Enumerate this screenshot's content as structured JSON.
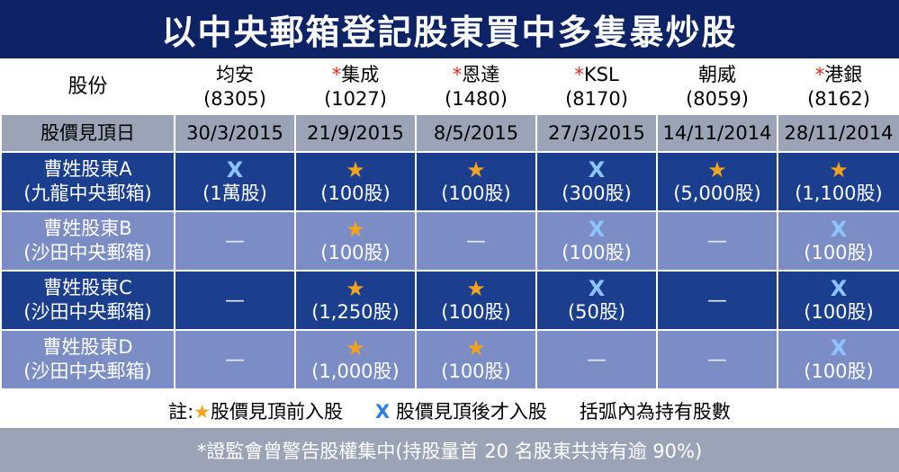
{
  "title": "以中央郵箱登記股東買中多隻暴炒股",
  "header_label": "股份",
  "stocks": [
    {
      "flag": "",
      "name": "均安",
      "code": "(8305)"
    },
    {
      "flag": "*",
      "name": "集成",
      "code": "(1027)"
    },
    {
      "flag": "*",
      "name": "恩達",
      "code": "(1480)"
    },
    {
      "flag": "*",
      "name": "KSL",
      "code": "(8170)"
    },
    {
      "flag": "",
      "name": "朝威",
      "code": "(8059)"
    },
    {
      "flag": "*",
      "name": "港銀",
      "code": "(8162)"
    }
  ],
  "date_label": "股價見頂日",
  "peak_dates": [
    "30/3/2015",
    "21/9/2015",
    "8/5/2015",
    "27/3/2015",
    "14/11/2014",
    "28/11/2014"
  ],
  "holders": [
    {
      "name": "曹姓股東A",
      "box": "(九龍中央郵箱)",
      "cells": [
        {
          "mark": "X",
          "amount": "(1萬股)"
        },
        {
          "mark": "★",
          "amount": "(100股)"
        },
        {
          "mark": "★",
          "amount": "(100股)"
        },
        {
          "mark": "X",
          "amount": "(300股)"
        },
        {
          "mark": "★",
          "amount": "(5,000股)"
        },
        {
          "mark": "★",
          "amount": "(1,100股)"
        }
      ]
    },
    {
      "name": "曹姓股東B",
      "box": "(沙田中央郵箱)",
      "cells": [
        {
          "mark": "",
          "amount": "—"
        },
        {
          "mark": "★",
          "amount": "(100股)"
        },
        {
          "mark": "",
          "amount": "—"
        },
        {
          "mark": "X",
          "amount": "(100股)"
        },
        {
          "mark": "",
          "amount": "—"
        },
        {
          "mark": "X",
          "amount": "(100股)"
        }
      ]
    },
    {
      "name": "曹姓股東C",
      "box": "(沙田中央郵箱)",
      "cells": [
        {
          "mark": "",
          "amount": "—"
        },
        {
          "mark": "★",
          "amount": "(1,250股)"
        },
        {
          "mark": "★",
          "amount": "(100股)"
        },
        {
          "mark": "X",
          "amount": "(50股)"
        },
        {
          "mark": "",
          "amount": "—"
        },
        {
          "mark": "X",
          "amount": "(100股)"
        }
      ]
    },
    {
      "name": "曹姓股東D",
      "box": "(沙田中央郵箱)",
      "cells": [
        {
          "mark": "",
          "amount": "—"
        },
        {
          "mark": "★",
          "amount": "(1,000股)"
        },
        {
          "mark": "★",
          "amount": "(100股)"
        },
        {
          "mark": "",
          "amount": "—"
        },
        {
          "mark": "",
          "amount": "—"
        },
        {
          "mark": "X",
          "amount": "(100股)"
        }
      ]
    }
  ],
  "legend": {
    "prefix": "註:",
    "star_symbol": "★",
    "star_text": "股價見頂前入股",
    "x_symbol": "X",
    "x_text": "股價見頂後才入股",
    "note": "括弧內為持有股數"
  },
  "footer": "*證監會曾警告股權集中(持股量首 20 名股東共持有逾 90%)",
  "colors": {
    "title_bg": "#0e2366",
    "dark_row": "#1b3f8e",
    "light_row": "#7b8dc4",
    "grey_row": "#9aa4b6",
    "star": "#f3a21c",
    "x_mark": "#8fc3ff",
    "asterisk": "#e3261b"
  }
}
